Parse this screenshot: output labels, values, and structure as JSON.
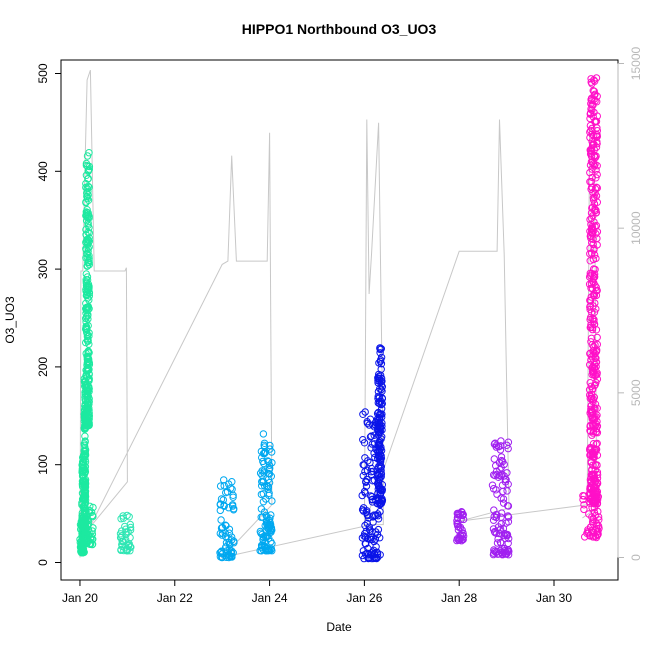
{
  "chart_data": {
    "type": "scatter",
    "title": "HIPPO1 Northbound O3_UO3",
    "xlabel": "Date",
    "ylabel": "O3_UO3",
    "x_tick_labels": [
      "Jan 20",
      "Jan 22",
      "Jan 24",
      "Jan 26",
      "Jan 28",
      "Jan 30"
    ],
    "x_tick_days": [
      20,
      22,
      24,
      26,
      28,
      30
    ],
    "xlim": [
      19.6,
      31.35
    ],
    "ylim": [
      0,
      500
    ],
    "y_ticks": [
      0,
      100,
      200,
      300,
      400,
      500
    ],
    "y2_ticks": [
      0,
      5000,
      10000,
      15000
    ],
    "y2lim": [
      0,
      15000
    ],
    "grid": false,
    "legend": "none",
    "secondary_series_color": "#c8c8c8",
    "series": [
      {
        "color": "#1de9a0",
        "segments": [
          {
            "x0": 20.0,
            "x1": 20.07,
            "y0": 10,
            "y1": 45
          },
          {
            "x0": 20.04,
            "x1": 20.09,
            "y0": 10,
            "y1": 110
          },
          {
            "x0": 20.09,
            "x1": 20.12,
            "y0": 30,
            "y1": 190
          },
          {
            "x0": 20.12,
            "x1": 20.2,
            "y0": 140,
            "y1": 420
          },
          {
            "x0": 20.1,
            "x1": 20.28,
            "y0": 18,
            "y1": 60
          }
        ]
      },
      {
        "color": "#30e6b4",
        "segments": [
          {
            "x0": 20.85,
            "x1": 21.08,
            "y0": 12,
            "y1": 50
          }
        ]
      },
      {
        "color": "#00a8f0",
        "segments": [
          {
            "x0": 22.95,
            "x1": 23.25,
            "y0": 5,
            "y1": 85
          },
          {
            "x0": 23.8,
            "x1": 24.05,
            "y0": 12,
            "y1": 138
          }
        ]
      },
      {
        "color": "#0a14e8",
        "segments": [
          {
            "x0": 25.95,
            "x1": 26.35,
            "y0": 4,
            "y1": 155
          },
          {
            "x0": 26.28,
            "x1": 26.38,
            "y0": 60,
            "y1": 220
          }
        ]
      },
      {
        "color": "#a020f0",
        "segments": [
          {
            "x0": 27.95,
            "x1": 28.1,
            "y0": 22,
            "y1": 52
          },
          {
            "x0": 28.7,
            "x1": 29.05,
            "y0": 8,
            "y1": 125
          }
        ]
      },
      {
        "color": "#ff10c8",
        "segments": [
          {
            "x0": 30.6,
            "x1": 30.95,
            "y0": 25,
            "y1": 80
          },
          {
            "x0": 30.75,
            "x1": 30.92,
            "y0": 60,
            "y1": 498
          }
        ]
      }
    ],
    "secondary_path": [
      [
        20.0,
        0
      ],
      [
        20.02,
        8700
      ],
      [
        20.06,
        8700
      ],
      [
        20.1,
        11500
      ],
      [
        20.15,
        14500
      ],
      [
        20.22,
        14800
      ],
      [
        20.3,
        8700
      ],
      [
        20.95,
        8700
      ],
      [
        20.98,
        8800
      ],
      [
        21.0,
        2300
      ],
      [
        20.2,
        900
      ],
      [
        23.0,
        8900
      ],
      [
        23.12,
        9000
      ],
      [
        23.2,
        12200
      ],
      [
        23.3,
        9000
      ],
      [
        23.95,
        9000
      ],
      [
        24.0,
        12900
      ],
      [
        24.05,
        1600
      ],
      [
        23.0,
        0
      ],
      [
        26.0,
        950
      ],
      [
        26.05,
        13300
      ],
      [
        26.1,
        8000
      ],
      [
        26.15,
        9200
      ],
      [
        26.3,
        13200
      ],
      [
        26.4,
        2800
      ],
      [
        26.4,
        1000
      ],
      [
        26.0,
        1000
      ],
      [
        28.0,
        9300
      ],
      [
        28.8,
        9300
      ],
      [
        28.85,
        13300
      ],
      [
        28.95,
        9200
      ],
      [
        29.05,
        1500
      ],
      [
        28.0,
        1100
      ],
      [
        30.7,
        1600
      ],
      [
        30.75,
        13000
      ],
      [
        30.85,
        12800
      ],
      [
        30.9,
        1500
      ],
      [
        30.6,
        1200
      ]
    ]
  }
}
